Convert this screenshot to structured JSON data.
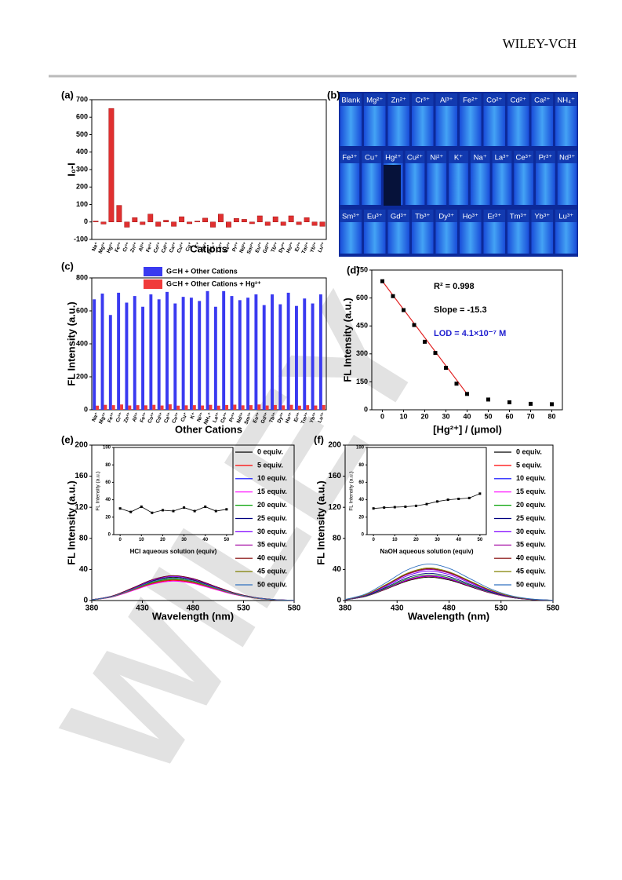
{
  "header": {
    "publisher": "WILEY-VCH"
  },
  "watermark": "WILEY",
  "photo": {
    "label": "(b)",
    "rows": [
      [
        "Blank",
        "Mg²⁺",
        "Zn²⁺",
        "Cr³⁺",
        "Al³⁺",
        "Fe²⁺",
        "Co²⁺",
        "Cd²⁺",
        "Ca²⁺",
        "NH₄⁺"
      ],
      [
        "Fe³⁺",
        "Cu⁺",
        "Hg²⁺",
        "Cu²⁺",
        "Ni²⁺",
        "K⁺",
        "Na⁺",
        "La³⁺",
        "Ce³⁺",
        "Pr³⁺",
        "Nd³⁺"
      ],
      [
        "Sm³⁺",
        "Eu³⁺",
        "Gd³⁺",
        "Tb³⁺",
        "Dy³⁺",
        "Ho³⁺",
        "Er³⁺",
        "Tm³⁺",
        "Yb³⁺",
        "Lu³⁺"
      ]
    ]
  },
  "chart_data": [
    {
      "type": "bar",
      "label": "(a)",
      "ylabel": "I₀-I",
      "xlabel": "Cations",
      "color": "#e03030",
      "categories": [
        "Na⁺",
        "Mg²⁺",
        "Hg²⁺",
        "Fe³⁺",
        "Cr³⁺",
        "Zn²⁺",
        "Al³⁺",
        "Fe²⁺",
        "Co²⁺",
        "Cd²⁺",
        "Ca²⁺",
        "Cu²⁺",
        "Cu⁺",
        "K⁺",
        "Ni²⁺",
        "NH₄⁺",
        "La³⁺",
        "Ce³⁺",
        "Pr³⁺",
        "Nd³⁺",
        "Sm³⁺",
        "Eu³⁺",
        "Gd³⁺",
        "Tb³⁺",
        "Dy³⁺",
        "Ho³⁺",
        "Er³⁺",
        "Tm³⁺",
        "Yb³⁺",
        "Lu³⁺"
      ],
      "values": [
        5,
        -12,
        650,
        95,
        -30,
        25,
        -15,
        45,
        -25,
        10,
        -25,
        30,
        -10,
        5,
        22,
        -30,
        45,
        -30,
        20,
        15,
        -10,
        35,
        -20,
        30,
        -20,
        35,
        -15,
        25,
        -20,
        -25
      ],
      "ylim": [
        -100,
        700
      ],
      "yticks": [
        -100,
        0,
        100,
        200,
        300,
        400,
        500,
        600,
        700
      ]
    },
    {
      "type": "grouped_bar",
      "label": "(c)",
      "ylabel": "FL Intensity (a.u.)",
      "xlabel": "Other Cations",
      "categories": [
        "Na⁺",
        "Mg²⁺",
        "Fe³⁺",
        "Cr³⁺",
        "Zn²⁺",
        "Al³⁺",
        "Fe²⁺",
        "Co²⁺",
        "Cd²⁺",
        "Ca²⁺",
        "Cu²⁺",
        "Cu⁺",
        "K⁺",
        "Ni²⁺",
        "NH₄⁺",
        "La³⁺",
        "Ce³⁺",
        "Pr³⁺",
        "Nd³⁺",
        "Sm³⁺",
        "Eu³⁺",
        "Gd³⁺",
        "Tb³⁺",
        "Dy³⁺",
        "Ho³⁺",
        "Er³⁺",
        "Tm³⁺",
        "Yb³⁺",
        "Lu³⁺"
      ],
      "series": [
        {
          "name": "G⊂H + Other Cations",
          "color": "#3a3af0",
          "values": [
            670,
            705,
            575,
            710,
            650,
            690,
            625,
            700,
            670,
            715,
            645,
            685,
            680,
            660,
            720,
            625,
            720,
            690,
            665,
            680,
            700,
            635,
            700,
            640,
            710,
            630,
            675,
            645,
            700
          ]
        },
        {
          "name": "G⊂H + Other Cations + Hg²⁺",
          "color": "#f03a3a",
          "values": [
            25,
            30,
            28,
            32,
            26,
            28,
            27,
            30,
            26,
            33,
            25,
            27,
            28,
            26,
            30,
            25,
            29,
            31,
            27,
            28,
            32,
            26,
            29,
            27,
            30,
            25,
            28,
            26,
            29
          ]
        }
      ],
      "ylim": [
        0,
        800
      ],
      "yticks": [
        0,
        200,
        400,
        600,
        800
      ]
    },
    {
      "type": "scatter",
      "label": "(d)",
      "ylabel": "FL Intensity (a.u.)",
      "xlabel": "[Hg²⁺] / (μmol)",
      "color": "#000000",
      "fit_color": "#e02020",
      "x": [
        0,
        5,
        10,
        15,
        20,
        25,
        30,
        35,
        40,
        50,
        60,
        70,
        80
      ],
      "values": [
        690,
        610,
        535,
        455,
        365,
        305,
        225,
        140,
        85,
        55,
        40,
        32,
        30
      ],
      "xlim": [
        -5,
        85
      ],
      "xticks": [
        0,
        10,
        20,
        30,
        40,
        50,
        60,
        70,
        80
      ],
      "ylim": [
        0,
        750
      ],
      "yticks": [
        0,
        150,
        300,
        450,
        600,
        750
      ],
      "annotations": [
        {
          "text": "R² = 0.998",
          "color": "#000000"
        },
        {
          "text": "Slope = -15.3",
          "color": "#000000"
        },
        {
          "text": "LOD = 4.1×10⁻⁷ M",
          "color": "#2020d0"
        }
      ]
    },
    {
      "type": "line",
      "label": "(e)",
      "ylabel": "FL Intensity (a.u.)",
      "xlabel": "Wavelength (nm)",
      "x": [
        380,
        400,
        420,
        440,
        460,
        480,
        500,
        520,
        540,
        560,
        580
      ],
      "xlim": [
        380,
        580
      ],
      "xticks": [
        380,
        430,
        480,
        530,
        580
      ],
      "ylim": [
        0,
        200
      ],
      "yticks": [
        0,
        40,
        80,
        120,
        160,
        200
      ],
      "series": [
        {
          "name": "0 equiv.",
          "color": "#000000",
          "values": [
            0.9,
            5.4,
            15,
            25.2,
            30,
            26.4,
            18,
            9.6,
            3.9,
            1.2,
            0.3
          ]
        },
        {
          "name": "5 equiv.",
          "color": "#ff0000",
          "values": [
            0.8,
            4.7,
            13,
            21.8,
            26,
            22.9,
            15.6,
            8.3,
            3.4,
            1.0,
            0.3
          ]
        },
        {
          "name": "10 equiv.",
          "color": "#0000ff",
          "values": [
            1.0,
            5.8,
            16,
            26.9,
            32,
            28.2,
            19.2,
            10.2,
            4.2,
            1.3,
            0.3
          ]
        },
        {
          "name": "15 equiv.",
          "color": "#ff00ff",
          "values": [
            0.8,
            4.5,
            12.5,
            21,
            25,
            22,
            15,
            8,
            3.3,
            1,
            0.3
          ]
        },
        {
          "name": "20 equiv.",
          "color": "#00a000",
          "values": [
            0.8,
            5.0,
            14,
            23.5,
            28,
            24.6,
            16.8,
            9.0,
            3.6,
            1.1,
            0.3
          ]
        },
        {
          "name": "25 equiv.",
          "color": "#000080",
          "values": [
            0.8,
            4.9,
            13.5,
            22.7,
            27,
            23.8,
            16.2,
            8.6,
            3.5,
            1.1,
            0.3
          ]
        },
        {
          "name": "30 equiv.",
          "color": "#8000ff",
          "values": [
            0.9,
            5.6,
            15.5,
            26,
            31,
            27.3,
            18.6,
            9.9,
            4.0,
            1.2,
            0.3
          ]
        },
        {
          "name": "35 equiv.",
          "color": "#a000a0",
          "values": [
            0.8,
            4.9,
            13.5,
            22.7,
            27,
            23.8,
            16.2,
            8.6,
            3.5,
            1.1,
            0.3
          ]
        },
        {
          "name": "40 equiv.",
          "color": "#800000",
          "values": [
            1.0,
            5.8,
            16,
            26.9,
            32,
            28.2,
            19.2,
            10.2,
            4.2,
            1.3,
            0.3
          ]
        },
        {
          "name": "45 equiv.",
          "color": "#808000",
          "values": [
            0.8,
            4.9,
            13.5,
            22.7,
            27,
            23.8,
            16.2,
            8.6,
            3.5,
            1.1,
            0.3
          ]
        },
        {
          "name": "50 equiv.",
          "color": "#3070c0",
          "values": [
            0.9,
            5.2,
            14.5,
            24.4,
            29,
            25.5,
            17.4,
            9.3,
            3.8,
            1.2,
            0.3
          ]
        }
      ],
      "inset": {
        "type": "line",
        "ylabel": "FL Intensity (a.u.)",
        "xlabel": "HCl aqueous solution (equiv)",
        "color": "#000000",
        "x": [
          0,
          5,
          10,
          15,
          20,
          25,
          30,
          35,
          40,
          45,
          50
        ],
        "values": [
          30,
          26,
          32,
          25,
          28,
          27,
          31,
          27,
          32,
          27,
          29
        ],
        "xlim": [
          -3,
          53
        ],
        "xticks": [
          0,
          10,
          20,
          30,
          40,
          50
        ],
        "ylim": [
          0,
          100
        ],
        "yticks": [
          0,
          20,
          40,
          60,
          80,
          100
        ]
      }
    },
    {
      "type": "line",
      "label": "(f)",
      "ylabel": "FL Intensity (a.u.)",
      "xlabel": "Wavelength (nm)",
      "x": [
        380,
        400,
        420,
        440,
        460,
        480,
        500,
        520,
        540,
        560,
        580
      ],
      "xlim": [
        380,
        580
      ],
      "xticks": [
        380,
        430,
        480,
        530,
        580
      ],
      "ylim": [
        0,
        200
      ],
      "yticks": [
        0,
        40,
        80,
        120,
        160,
        200
      ],
      "series": [
        {
          "name": "0 equiv.",
          "color": "#000000",
          "values": [
            0.9,
            5.4,
            15,
            25.2,
            30,
            26.4,
            18,
            9.6,
            3.9,
            1.2,
            0.3
          ]
        },
        {
          "name": "5 equiv.",
          "color": "#ff0000",
          "values": [
            0.9,
            5.6,
            15.5,
            26,
            31,
            27.3,
            18.6,
            9.9,
            4.0,
            1.2,
            0.3
          ]
        },
        {
          "name": "10 equiv.",
          "color": "#0000ff",
          "values": [
            0.9,
            5.7,
            15.8,
            26.5,
            31.5,
            27.7,
            18.9,
            10.1,
            4.1,
            1.3,
            0.3
          ]
        },
        {
          "name": "15 equiv.",
          "color": "#ff00ff",
          "values": [
            1.0,
            5.8,
            16,
            26.9,
            32,
            28.2,
            19.2,
            10.2,
            4.2,
            1.3,
            0.3
          ]
        },
        {
          "name": "20 equiv.",
          "color": "#00a000",
          "values": [
            1.0,
            5.9,
            16.5,
            27.7,
            33,
            29,
            19.8,
            10.6,
            4.3,
            1.3,
            0.3
          ]
        },
        {
          "name": "25 equiv.",
          "color": "#000080",
          "values": [
            1.1,
            6.3,
            17.5,
            29.4,
            35,
            30.8,
            21,
            11.2,
            4.6,
            1.4,
            0.4
          ]
        },
        {
          "name": "30 equiv.",
          "color": "#8000ff",
          "values": [
            1.1,
            6.8,
            19,
            31.9,
            38,
            33.4,
            22.8,
            12.2,
            4.9,
            1.5,
            0.4
          ]
        },
        {
          "name": "35 equiv.",
          "color": "#a000a0",
          "values": [
            1.2,
            7.2,
            20,
            33.6,
            40,
            35.2,
            24,
            12.8,
            5.2,
            1.6,
            0.4
          ]
        },
        {
          "name": "40 equiv.",
          "color": "#800000",
          "values": [
            1.2,
            7.4,
            20.5,
            34.4,
            41,
            36.1,
            24.6,
            13.1,
            5.3,
            1.6,
            0.4
          ]
        },
        {
          "name": "45 equiv.",
          "color": "#808000",
          "values": [
            1.3,
            7.6,
            21,
            35.3,
            42,
            37,
            25.2,
            13.4,
            5.5,
            1.7,
            0.4
          ]
        },
        {
          "name": "50 equiv.",
          "color": "#3070c0",
          "values": [
            1.4,
            8.5,
            23.5,
            39.5,
            47,
            41.4,
            28.2,
            15,
            6.1,
            1.9,
            0.5
          ]
        }
      ],
      "inset": {
        "type": "line",
        "ylabel": "FL Intensity (a.u.)",
        "xlabel": "NaOH aqueous solution (equiv)",
        "color": "#000000",
        "x": [
          0,
          5,
          10,
          15,
          20,
          25,
          30,
          35,
          40,
          45,
          50
        ],
        "values": [
          30,
          31,
          31.5,
          32,
          33,
          35,
          38,
          40,
          41,
          42,
          47
        ],
        "xlim": [
          -3,
          53
        ],
        "xticks": [
          0,
          10,
          20,
          30,
          40,
          50
        ],
        "ylim": [
          0,
          100
        ],
        "yticks": [
          0,
          20,
          40,
          60,
          80,
          100
        ]
      }
    }
  ]
}
